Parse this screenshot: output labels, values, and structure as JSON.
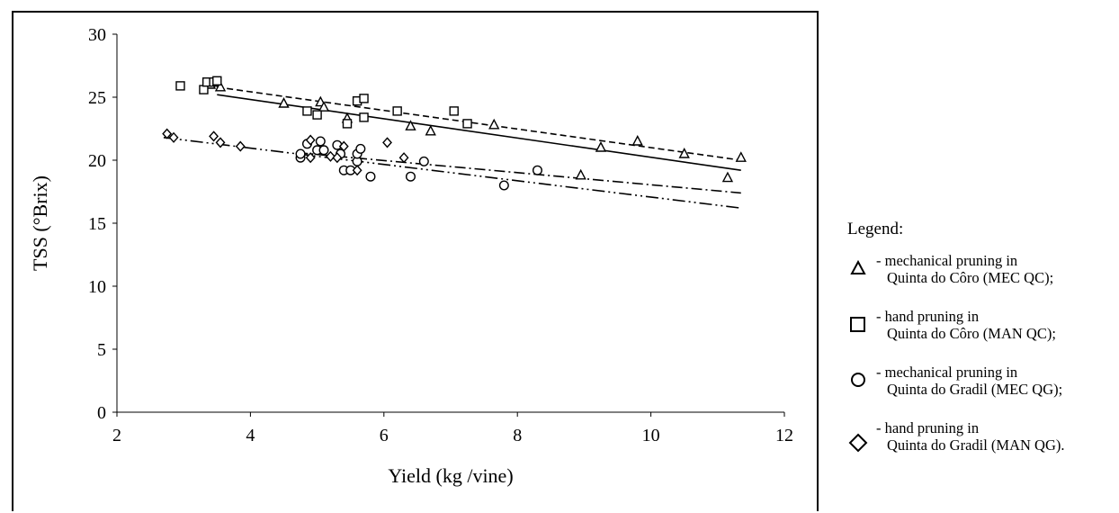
{
  "chart_data": {
    "type": "scatter",
    "xlabel": "Yield (kg /vine)",
    "ylabel": "TSS (°Brix)",
    "xlim": [
      2,
      12
    ],
    "ylim": [
      0,
      30
    ],
    "xticks": [
      "2",
      "4",
      "6",
      "8",
      "10",
      "12"
    ],
    "yticks": [
      "0",
      "5",
      "10",
      "15",
      "20",
      "25",
      "30"
    ],
    "series": [
      {
        "key": "mec_qc",
        "marker": "triangle",
        "trendline": "dashed",
        "trend": [
          [
            3.5,
            25.8
          ],
          [
            11.35,
            20.0
          ]
        ],
        "points": [
          [
            3.4,
            26.0
          ],
          [
            3.55,
            25.8
          ],
          [
            4.5,
            24.5
          ],
          [
            5.05,
            24.6
          ],
          [
            5.1,
            24.2
          ],
          [
            5.45,
            23.3
          ],
          [
            6.4,
            22.7
          ],
          [
            6.7,
            22.3
          ],
          [
            7.65,
            22.8
          ],
          [
            8.95,
            18.8
          ],
          [
            9.25,
            21.0
          ],
          [
            9.8,
            21.5
          ],
          [
            10.5,
            20.5
          ],
          [
            11.15,
            18.6
          ],
          [
            11.35,
            20.2
          ]
        ]
      },
      {
        "key": "man_qc",
        "marker": "square",
        "trendline": "solid",
        "trend": [
          [
            3.5,
            25.2
          ],
          [
            11.35,
            19.2
          ]
        ],
        "points": [
          [
            2.95,
            25.9
          ],
          [
            3.3,
            25.6
          ],
          [
            3.35,
            26.2
          ],
          [
            3.45,
            26.2
          ],
          [
            3.5,
            26.3
          ],
          [
            4.85,
            23.9
          ],
          [
            5.0,
            23.6
          ],
          [
            5.45,
            22.9
          ],
          [
            5.6,
            24.7
          ],
          [
            5.7,
            24.9
          ],
          [
            5.7,
            23.4
          ],
          [
            6.2,
            23.9
          ],
          [
            7.05,
            23.9
          ],
          [
            7.25,
            22.9
          ]
        ]
      },
      {
        "key": "mec_qg",
        "marker": "circle",
        "trendline": "dash-dot",
        "trend": [
          [
            4.7,
            20.6
          ],
          [
            11.35,
            17.4
          ]
        ],
        "points": [
          [
            4.75,
            20.2
          ],
          [
            4.75,
            20.5
          ],
          [
            4.85,
            21.3
          ],
          [
            5.0,
            20.8
          ],
          [
            5.05,
            21.5
          ],
          [
            5.1,
            20.8
          ],
          [
            5.3,
            21.2
          ],
          [
            5.35,
            20.5
          ],
          [
            5.4,
            19.2
          ],
          [
            5.5,
            19.2
          ],
          [
            5.6,
            19.9
          ],
          [
            5.6,
            20.5
          ],
          [
            5.65,
            20.9
          ],
          [
            5.8,
            18.7
          ],
          [
            6.4,
            18.7
          ],
          [
            6.6,
            19.9
          ],
          [
            7.8,
            18.0
          ],
          [
            8.3,
            19.2
          ]
        ]
      },
      {
        "key": "man_qg",
        "marker": "diamond",
        "trendline": "dash-dot-dot",
        "trend": [
          [
            2.7,
            21.8
          ],
          [
            11.35,
            16.2
          ]
        ],
        "points": [
          [
            2.75,
            22.1
          ],
          [
            2.85,
            21.8
          ],
          [
            3.45,
            21.9
          ],
          [
            3.55,
            21.4
          ],
          [
            3.85,
            21.1
          ],
          [
            4.9,
            21.6
          ],
          [
            4.9,
            20.2
          ],
          [
            5.2,
            20.3
          ],
          [
            5.3,
            20.2
          ],
          [
            5.4,
            21.1
          ],
          [
            5.6,
            19.2
          ],
          [
            6.05,
            21.4
          ],
          [
            6.3,
            20.2
          ]
        ]
      }
    ]
  },
  "legend": {
    "title": "Legend:",
    "items": [
      {
        "marker": "triangle",
        "line1": "- mechanical pruning in",
        "line2": "Quinta do Côro (MEC QC);"
      },
      {
        "marker": "square",
        "line1": "- hand pruning in",
        "line2": "Quinta do Côro (MAN QC);"
      },
      {
        "marker": "circle",
        "line1": "- mechanical pruning in",
        "line2": "Quinta do Gradil (MEC QG);"
      },
      {
        "marker": "diamond",
        "line1": "- hand pruning in",
        "line2": "Quinta do Gradil (MAN QG)."
      }
    ]
  }
}
